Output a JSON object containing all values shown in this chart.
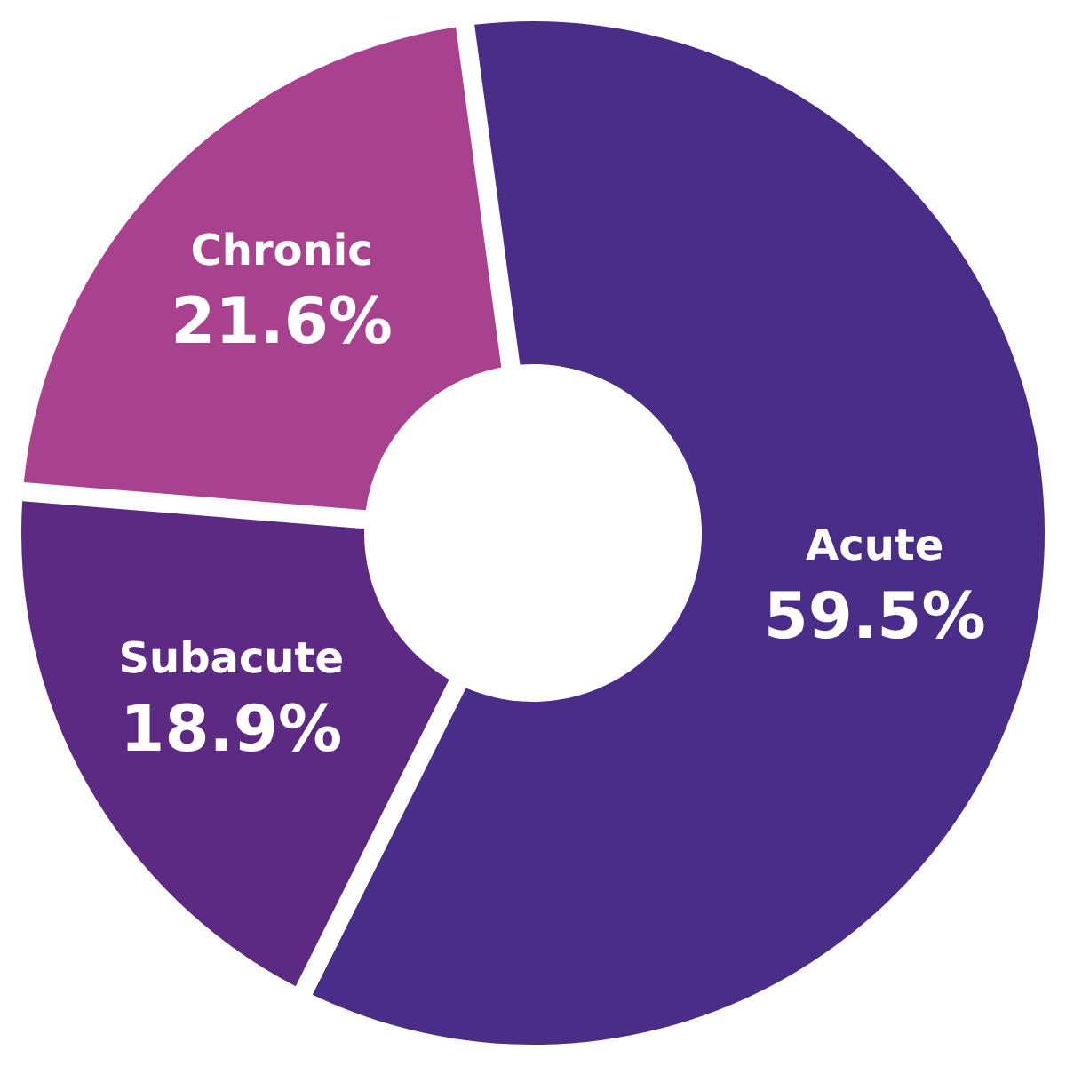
{
  "chart_data": {
    "type": "donut",
    "categories": [
      "Acute",
      "Subacute",
      "Chronic"
    ],
    "values": [
      59.5,
      18.9,
      21.6
    ],
    "value_labels": [
      "59.5%",
      "18.9%",
      "21.6%"
    ],
    "colors": [
      "#4a2d87",
      "#5c2a82",
      "#a8428f"
    ],
    "legend": false
  }
}
